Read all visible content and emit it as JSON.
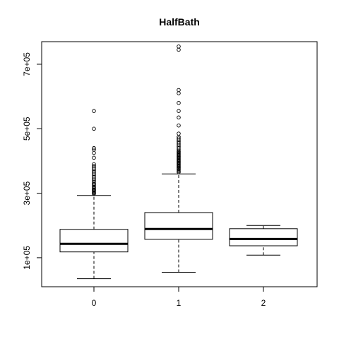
{
  "chart_data": {
    "type": "boxplot",
    "title": "HalfBath",
    "xlabel": "",
    "ylabel": "",
    "categories": [
      "0",
      "1",
      "2"
    ],
    "ylim": [
      10000,
      770000
    ],
    "y_ticks": [
      100000,
      300000,
      500000,
      700000
    ],
    "y_tick_labels": [
      "1e+05",
      "3e+05",
      "5e+05",
      "7e+05"
    ],
    "grid": false,
    "boxes": [
      {
        "category": "0",
        "whisker_low": 34900,
        "q1": 118000,
        "median": 143000,
        "q3": 188000,
        "whisker_high": 293000,
        "outliers": [
          298000,
          300000,
          302000,
          305000,
          308000,
          310000,
          312000,
          315000,
          318000,
          320000,
          325000,
          328000,
          330000,
          335000,
          340000,
          345000,
          350000,
          355000,
          360000,
          365000,
          370000,
          375000,
          380000,
          385000,
          390000,
          410000,
          425000,
          435000,
          440000,
          500000,
          555000
        ]
      },
      {
        "category": "1",
        "whisker_low": 55000,
        "q1": 157000,
        "median": 189000,
        "q3": 240000,
        "whisker_high": 360000,
        "outliers": [
          365000,
          368000,
          372000,
          375000,
          378000,
          380000,
          383000,
          385000,
          388000,
          390000,
          393000,
          395000,
          398000,
          400000,
          403000,
          405000,
          408000,
          410000,
          413000,
          415000,
          418000,
          420000,
          423000,
          425000,
          428000,
          430000,
          435000,
          440000,
          445000,
          450000,
          455000,
          460000,
          465000,
          470000,
          475000,
          485000,
          510000,
          535000,
          555000,
          580000,
          610000,
          620000,
          745000,
          755000
        ]
      },
      {
        "category": "2",
        "whisker_low": 108000,
        "q1": 137000,
        "median": 158000,
        "q3": 190000,
        "whisker_high": 200000,
        "outliers": []
      }
    ]
  }
}
